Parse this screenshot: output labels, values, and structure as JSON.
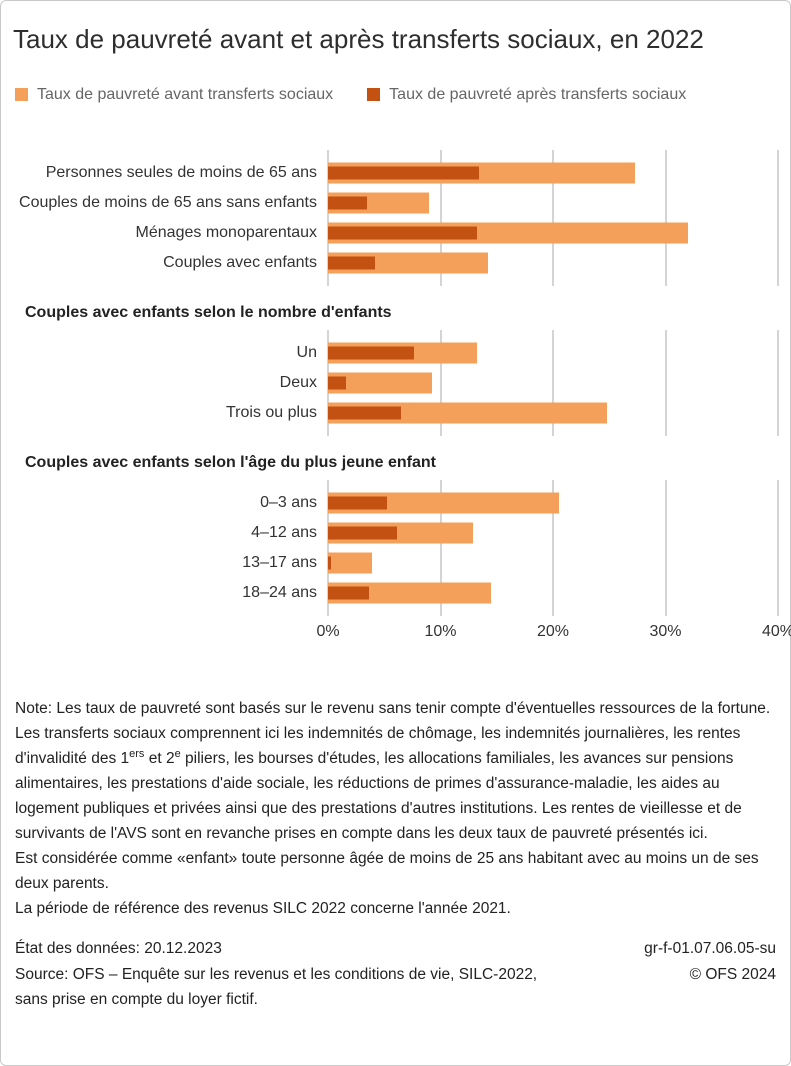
{
  "title": "Taux de pauvreté avant et après transferts sociaux, en 2022",
  "legend": {
    "items": [
      {
        "label": "Taux de pauvreté avant transferts sociaux",
        "color": "#F4A05A"
      },
      {
        "label": "Taux de pauvreté après transferts sociaux",
        "color": "#C25112"
      }
    ]
  },
  "chart_data": {
    "type": "bar",
    "orientation": "horizontal",
    "unit": "%",
    "xlim": [
      0,
      40
    ],
    "x_ticks": [
      "0%",
      "10%",
      "20%",
      "30%",
      "40%"
    ],
    "series_names": [
      "Taux de pauvreté avant transferts sociaux",
      "Taux de pauvreté après transferts sociaux"
    ],
    "sections": [
      {
        "header": "",
        "rows": [
          {
            "label": "Personnes seules de moins de 65 ans",
            "avant": 27.3,
            "apres": 13.4
          },
          {
            "label": "Couples de moins de 65 ans sans enfants",
            "avant": 9.0,
            "apres": 3.5
          },
          {
            "label": "Ménages monoparentaux",
            "avant": 32.0,
            "apres": 13.2
          },
          {
            "label": "Couples avec enfants",
            "avant": 14.2,
            "apres": 4.2
          }
        ]
      },
      {
        "header": "Couples avec enfants selon le nombre d'enfants",
        "rows": [
          {
            "label": "Un",
            "avant": 13.2,
            "apres": 7.6
          },
          {
            "label": "Deux",
            "avant": 9.2,
            "apres": 1.6
          },
          {
            "label": "Trois ou plus",
            "avant": 24.8,
            "apres": 6.5
          }
        ]
      },
      {
        "header": "Couples avec enfants selon l'âge du plus jeune enfant",
        "rows": [
          {
            "label": "0–3 ans",
            "avant": 20.5,
            "apres": 5.2
          },
          {
            "label": "4–12 ans",
            "avant": 12.9,
            "apres": 6.1
          },
          {
            "label": "13–17 ans",
            "avant": 3.9,
            "apres": 0.3
          },
          {
            "label": "18–24 ans",
            "avant": 14.5,
            "apres": 3.6
          }
        ]
      }
    ]
  },
  "notes": {
    "p1": "Note: Les taux de pauvreté sont basés sur le revenu sans tenir compte d'éventuelles ressources de la fortune.",
    "p2_parts": [
      {
        "text": "Les transferts sociaux comprennent ici les indemnités de chômage, les indemnités journalières, les rentes d'invalidité des 1",
        "sup": false
      },
      {
        "text": "ers",
        "sup": true
      },
      {
        "text": " et 2",
        "sup": false
      },
      {
        "text": "e",
        "sup": true
      },
      {
        "text": " piliers, les bourses d'études, les allocations familiales, les avances sur pensions alimentaires, les prestations d'aide sociale, les réductions de primes d'assurance-maladie, les aides au logement publiques et privées ainsi que des prestations d'autres institutions. Les rentes de vieillesse et de survivants de l'AVS sont en revanche prises en compte dans les deux taux de pauvreté présentés ici.",
        "sup": false
      }
    ],
    "p3": "Est considérée comme «enfant» toute personne âgée de moins de 25 ans habitant avec au moins un de ses deux parents.",
    "p4": "La période de référence des revenus SILC 2022 concerne l'année 2021."
  },
  "footer": {
    "status": "État des données: 20.12.2023",
    "source_line1": "Source: OFS – Enquête sur les revenus et les conditions de vie, SILC-2022,",
    "source_line2": "sans prise en compte du loyer fictif.",
    "reference": "gr-f-01.07.06.05-su",
    "copyright": "© OFS 2024"
  }
}
